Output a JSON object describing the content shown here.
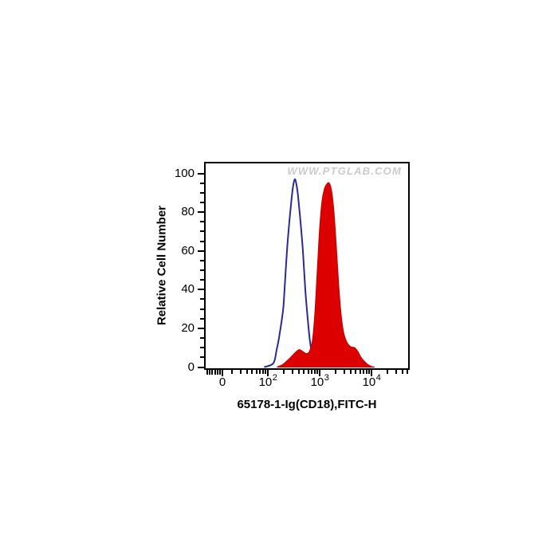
{
  "watermark": {
    "text": "WWW.PTGLAB.COM",
    "color": "#cbcbcb"
  },
  "chart_data": {
    "type": "area",
    "subtype": "flow-cytometry-histogram-overlay",
    "title": "",
    "xlabel": "65178-1-Ig(CD18),FITC-H",
    "ylabel": "Relative Cell Number",
    "x_scale": "logicle (log decades, linear compression near 0)",
    "ylim": [
      0,
      105
    ],
    "grid": false,
    "legend": false,
    "x_major_ticks": [
      {
        "label_base": "0",
        "label_exp": "",
        "type": "zero"
      },
      {
        "label_base": "10",
        "label_exp": "2",
        "value": 100
      },
      {
        "label_base": "10",
        "label_exp": "3",
        "value": 1000
      },
      {
        "label_base": "10",
        "label_exp": "4",
        "value": 10000
      }
    ],
    "x_minor_tick_values": [
      20,
      30,
      40,
      50,
      60,
      70,
      80,
      90,
      200,
      300,
      400,
      500,
      600,
      700,
      800,
      900,
      2000,
      3000,
      4000,
      5000,
      6000,
      7000,
      8000,
      9000,
      20000,
      30000,
      40000,
      50000
    ],
    "y_major_ticks": [
      0,
      20,
      40,
      60,
      80,
      100
    ],
    "y_minor_step": 5,
    "series": [
      {
        "name": "control-open-histogram",
        "style": "open",
        "line_color": "#2b2b96",
        "fill_color": "none",
        "peak": {
          "x": 333,
          "y": 97
        },
        "points": [
          [
            85,
            0
          ],
          [
            128,
            2
          ],
          [
            148,
            9
          ],
          [
            164,
            15
          ],
          [
            196,
            29
          ],
          [
            210,
            40
          ],
          [
            234,
            60
          ],
          [
            260,
            75
          ],
          [
            290,
            88
          ],
          [
            310,
            94
          ],
          [
            333,
            97
          ],
          [
            358,
            94
          ],
          [
            384,
            88
          ],
          [
            427,
            75
          ],
          [
            475,
            60
          ],
          [
            528,
            40
          ],
          [
            588,
            25
          ],
          [
            653,
            13
          ],
          [
            727,
            6
          ],
          [
            838,
            2
          ],
          [
            1035,
            0
          ]
        ]
      },
      {
        "name": "cd18-stained-filled-histogram",
        "style": "filled",
        "line_color": "#c40000",
        "fill_color": "#dd0000",
        "peak": {
          "x": 1531,
          "y": 95
        },
        "points": [
          [
            150,
            0
          ],
          [
            196,
            1.5
          ],
          [
            251,
            4
          ],
          [
            310,
            6.5
          ],
          [
            371,
            8.5
          ],
          [
            412,
            9
          ],
          [
            475,
            8
          ],
          [
            547,
            7
          ],
          [
            631,
            8
          ],
          [
            727,
            14
          ],
          [
            808,
            28
          ],
          [
            899,
            50
          ],
          [
            1000,
            72
          ],
          [
            1112,
            86
          ],
          [
            1236,
            92
          ],
          [
            1374,
            94.5
          ],
          [
            1531,
            95
          ],
          [
            1701,
            91
          ],
          [
            1892,
            80
          ],
          [
            2103,
            62
          ],
          [
            2339,
            42
          ],
          [
            2600,
            27
          ],
          [
            2897,
            18
          ],
          [
            3334,
            13
          ],
          [
            3981,
            10.5
          ],
          [
            4749,
            10
          ],
          [
            5470,
            8
          ],
          [
            6310,
            5
          ],
          [
            7272,
            3
          ],
          [
            8375,
            1.5
          ],
          [
            10000,
            0.3
          ],
          [
            11530,
            0
          ]
        ]
      }
    ]
  }
}
